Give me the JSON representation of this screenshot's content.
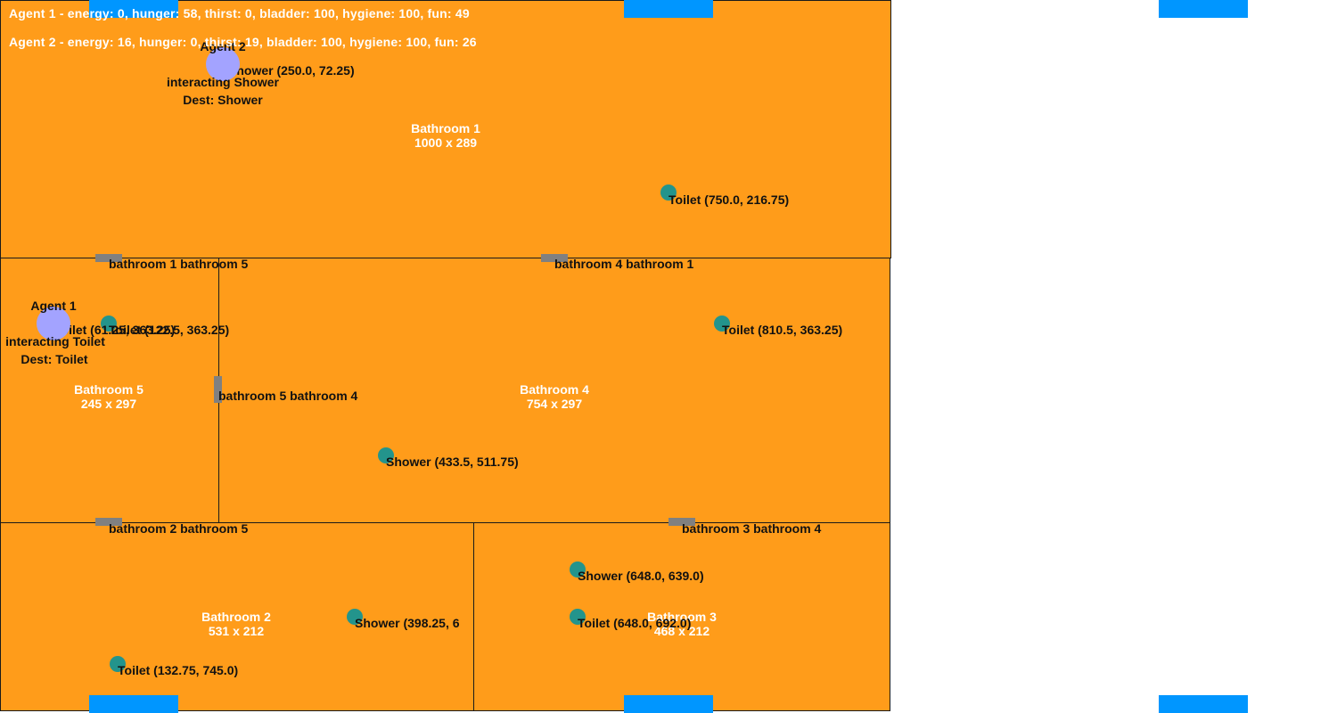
{
  "rooms": {
    "bathroom1": {
      "name": "Bathroom 1",
      "size": "1000 x 289"
    },
    "bathroom5": {
      "name": "Bathroom 5",
      "size": "245 x 297"
    },
    "bathroom4": {
      "name": "Bathroom 4",
      "size": "754 x 297"
    },
    "bathroom2": {
      "name": "Bathroom 2",
      "size": "531 x 212"
    },
    "bathroom3": {
      "name": "Bathroom 3",
      "size": "468 x 212"
    }
  },
  "doors": {
    "d15": "bathroom 1 bathroom 5",
    "d41": "bathroom 4 bathroom 1",
    "d54": "bathroom 5 bathroom 4",
    "d25": "bathroom 2 bathroom 5",
    "d34": "bathroom 3 bathroom 4"
  },
  "objects": {
    "shower_b1": "Shower (250.0, 72.25)",
    "toilet_b1": "Toilet (750.0, 216.75)",
    "toilet_b5": "Toilet (122.5, 363.25)",
    "toilet_b5_ghost": "Toilet (61.25, 363.25)",
    "toilet_b4": "Toilet (810.5, 363.25)",
    "shower_b4": "Shower (433.5, 511.75)",
    "shower_b2": "Shower (398.25, 6",
    "toilet_b2": "Toilet (132.75, 745.0)",
    "shower_b3": "Shower (648.0, 639.0)",
    "toilet_b3": "Toilet (648.0, 692.0)"
  },
  "agents": {
    "agent1": {
      "name": "Agent 1",
      "state": "interacting Toilet",
      "dest": "Dest: Toilet"
    },
    "agent2": {
      "name": "Agent 2",
      "state": "interacting Shower",
      "dest": "Dest: Shower"
    }
  },
  "status": {
    "agent1": "Agent 1 - energy: 0, hunger: 58, thirst: 0, bladder: 100, hygiene: 100, fun: 49",
    "agent2": "Agent 2 - energy: 16, hunger: 0, thirst: 19, bladder: 100, hygiene: 100, fun: 26"
  },
  "colors": {
    "room": "#FF9C1A",
    "object": "#23948C",
    "agent": "#A3A3FF",
    "door": "#808080",
    "spawn": "#0096FF"
  }
}
